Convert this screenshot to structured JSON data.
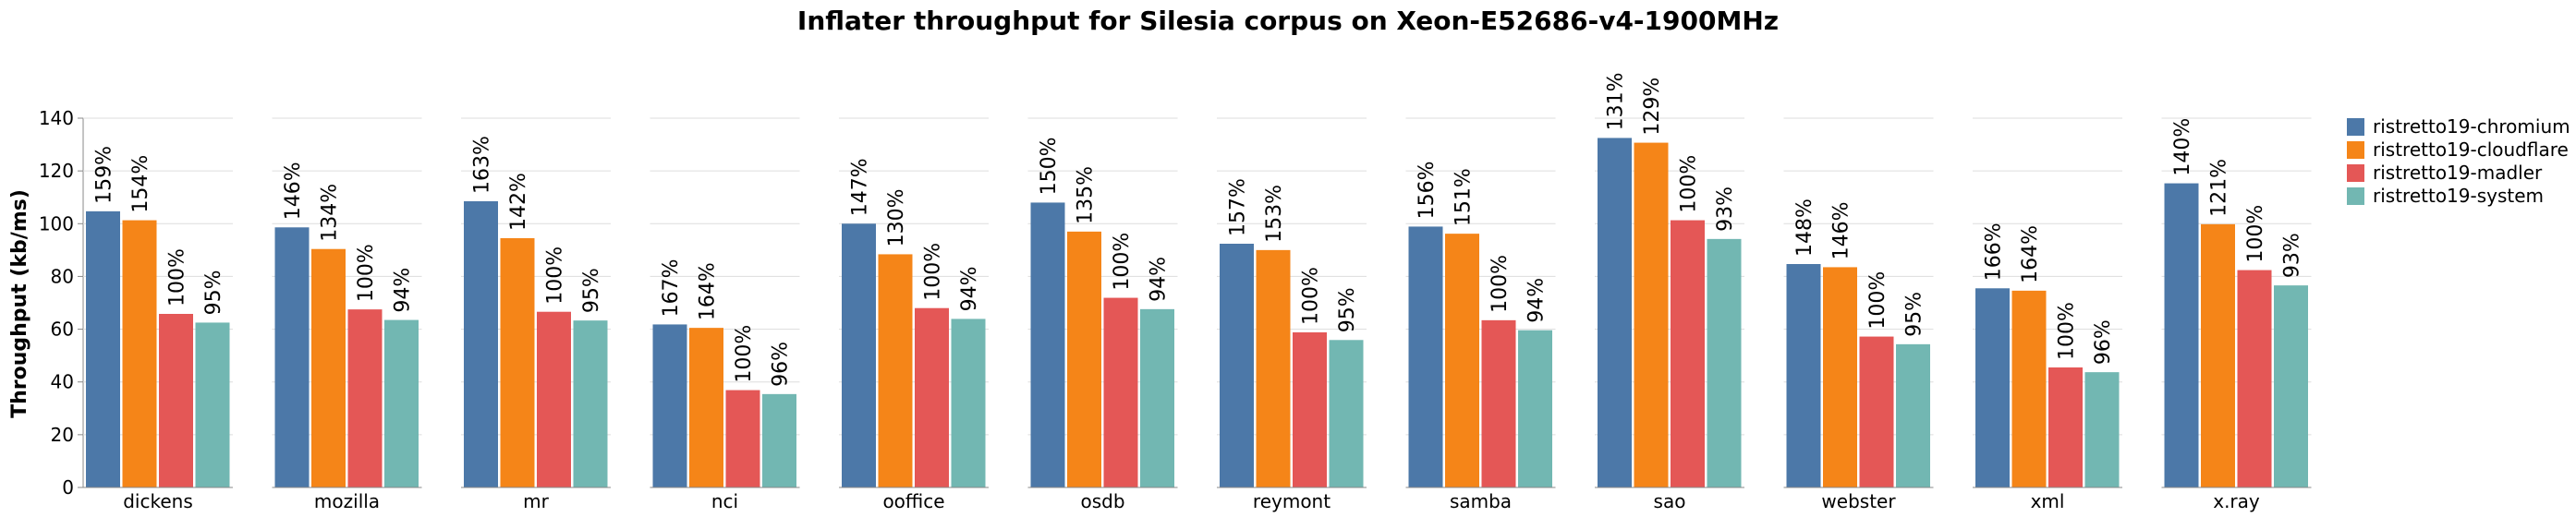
{
  "chart_data": {
    "type": "bar",
    "title": "Inflater throughput for Silesia corpus on Xeon-E52686-v4-1900MHz",
    "ylabel": "Throughput (kb/ms)",
    "xlabel": "",
    "ylim": [
      0,
      140
    ],
    "yticks": [
      0,
      20,
      40,
      60,
      80,
      100,
      120,
      140
    ],
    "grid": true,
    "legend_position": "right",
    "categories": [
      "dickens",
      "mozilla",
      "mr",
      "nci",
      "ooffice",
      "osdb",
      "reymont",
      "samba",
      "sao",
      "webster",
      "xml",
      "x.ray"
    ],
    "series": [
      {
        "name": "ristretto19-chromium",
        "color": "#4c78a8",
        "values": [
          104.7,
          98.6,
          108.5,
          61.8,
          100.0,
          108.0,
          92.4,
          98.9,
          132.5,
          84.7,
          75.5,
          115.3
        ],
        "labels": [
          "159%",
          "146%",
          "163%",
          "167%",
          "147%",
          "150%",
          "157%",
          "156%",
          "131%",
          "148%",
          "166%",
          "140%"
        ]
      },
      {
        "name": "ristretto19-cloudflare",
        "color": "#f58518",
        "values": [
          101.3,
          90.4,
          94.5,
          60.5,
          88.4,
          97.0,
          90.0,
          96.2,
          130.7,
          83.5,
          74.6,
          99.8
        ],
        "labels": [
          "154%",
          "134%",
          "142%",
          "164%",
          "130%",
          "135%",
          "153%",
          "151%",
          "129%",
          "146%",
          "164%",
          "121%"
        ]
      },
      {
        "name": "ristretto19-madler",
        "color": "#e45756",
        "values": [
          65.8,
          67.5,
          66.6,
          36.9,
          68.0,
          71.9,
          58.8,
          63.4,
          101.3,
          57.2,
          45.5,
          82.4
        ],
        "labels": [
          "100%",
          "100%",
          "100%",
          "100%",
          "100%",
          "100%",
          "100%",
          "100%",
          "100%",
          "100%",
          "100%",
          "100%"
        ]
      },
      {
        "name": "ristretto19-system",
        "color": "#72b7b2",
        "values": [
          62.5,
          63.5,
          63.3,
          35.4,
          63.9,
          67.6,
          55.9,
          59.6,
          94.2,
          54.3,
          43.7,
          76.6
        ],
        "labels": [
          "95%",
          "94%",
          "95%",
          "96%",
          "94%",
          "94%",
          "95%",
          "94%",
          "93%",
          "95%",
          "96%",
          "93%"
        ]
      }
    ]
  }
}
